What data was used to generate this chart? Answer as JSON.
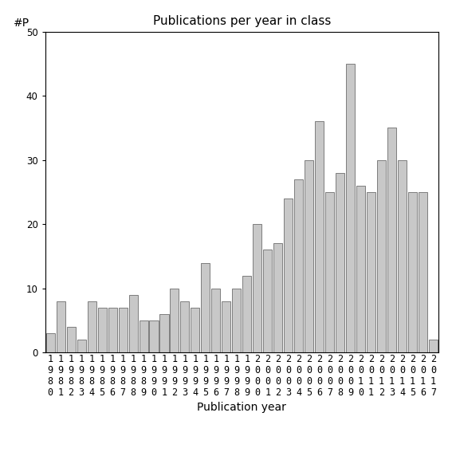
{
  "title": "Publications per year in class",
  "xlabel": "Publication year",
  "ylabel": "#P",
  "years": [
    1980,
    1981,
    1982,
    1983,
    1984,
    1985,
    1986,
    1987,
    1988,
    1989,
    1990,
    1991,
    1992,
    1993,
    1994,
    1995,
    1996,
    1997,
    1998,
    1999,
    2000,
    2001,
    2002,
    2003,
    2004,
    2005,
    2006,
    2007,
    2008,
    2009,
    2010,
    2011,
    2012,
    2013,
    2014,
    2015,
    2016,
    2017
  ],
  "values": [
    3,
    8,
    4,
    2,
    8,
    7,
    7,
    7,
    9,
    5,
    5,
    6,
    10,
    8,
    7,
    14,
    10,
    8,
    10,
    12,
    20,
    16,
    17,
    24,
    27,
    30,
    36,
    25,
    28,
    45,
    26,
    25,
    30,
    35,
    30,
    25,
    25,
    2
  ],
  "bar_color": "#c8c8c8",
  "bar_edgecolor": "#555555",
  "ylim": [
    0,
    50
  ],
  "yticks": [
    0,
    10,
    20,
    30,
    40,
    50
  ],
  "bg_color": "#ffffff",
  "title_fontsize": 11,
  "label_fontsize": 10,
  "tick_fontsize": 8.5
}
